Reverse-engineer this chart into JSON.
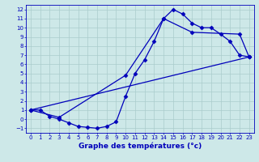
{
  "bg_color": "#cde8e8",
  "grid_color": "#aacccc",
  "line_color": "#0000bb",
  "xlabel": "Graphe des températures (°c)",
  "xlim": [
    -0.5,
    23.5
  ],
  "ylim": [
    -1.5,
    12.5
  ],
  "xticks": [
    0,
    1,
    2,
    3,
    4,
    5,
    6,
    7,
    8,
    9,
    10,
    11,
    12,
    13,
    14,
    15,
    16,
    17,
    18,
    19,
    20,
    21,
    22,
    23
  ],
  "yticks": [
    -1,
    0,
    1,
    2,
    3,
    4,
    5,
    6,
    7,
    8,
    9,
    10,
    11,
    12
  ],
  "line1_x": [
    0,
    1,
    2,
    3,
    4,
    5,
    6,
    7,
    8,
    9,
    10,
    11,
    12,
    13,
    14,
    15,
    16,
    17,
    18,
    19,
    20,
    21,
    22,
    23
  ],
  "line1_y": [
    1.0,
    1.0,
    0.3,
    0.0,
    -0.4,
    -0.8,
    -0.9,
    -1.0,
    -0.8,
    -0.3,
    2.5,
    5.0,
    6.5,
    8.5,
    11.0,
    12.0,
    11.5,
    10.5,
    10.0,
    10.0,
    9.3,
    8.5,
    7.0,
    6.8
  ],
  "line2_x": [
    0,
    3,
    10,
    14,
    17,
    22,
    23
  ],
  "line2_y": [
    1.0,
    0.2,
    4.8,
    11.0,
    9.5,
    9.3,
    6.8
  ],
  "line3_x": [
    0,
    23
  ],
  "line3_y": [
    1.0,
    6.8
  ],
  "marker_style": "D",
  "marker_size": 2.5,
  "line_width": 0.9,
  "tick_fontsize": 5.0,
  "xlabel_fontsize": 6.5,
  "xlabel_fontweight": "bold"
}
